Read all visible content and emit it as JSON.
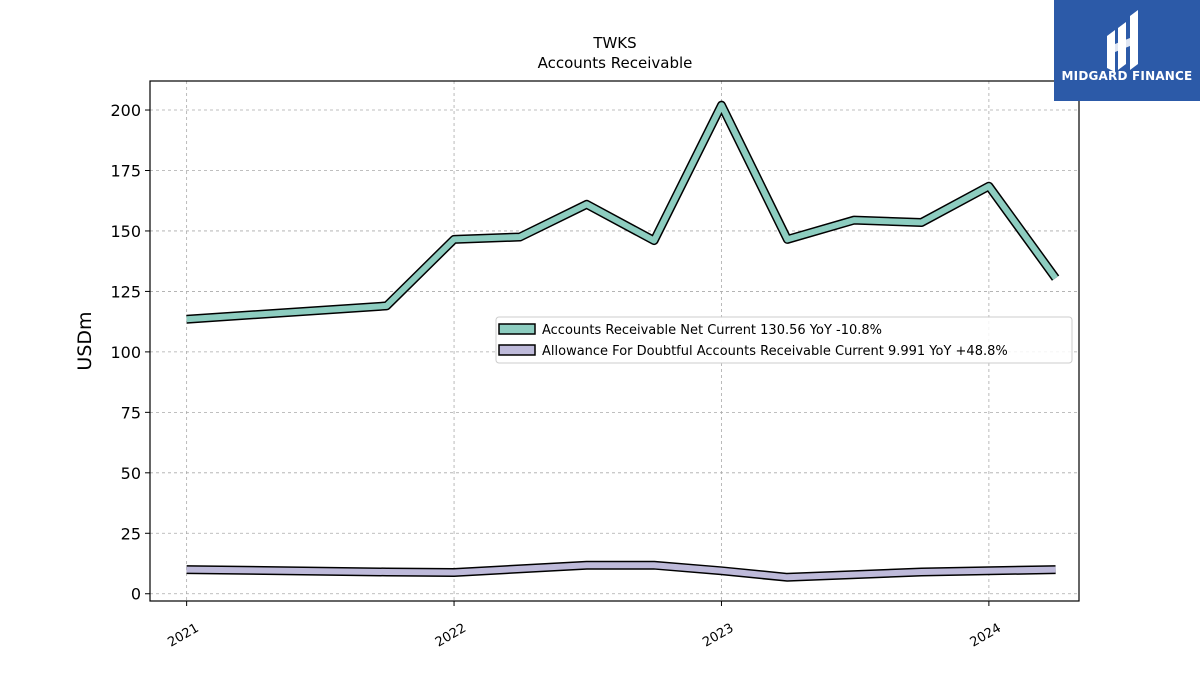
{
  "chart_data": {
    "type": "line",
    "title": "TWKS",
    "subtitle": "Accounts Receivable",
    "ylabel": "USDm",
    "xlabel": "",
    "ylim": [
      -3,
      212
    ],
    "xlim": [
      "2020-11-12",
      "2024-05-03"
    ],
    "yticks": [
      0,
      25,
      50,
      75,
      100,
      125,
      150,
      175,
      200
    ],
    "xticks": [
      {
        "date": "2021-01-01",
        "label": "2021"
      },
      {
        "date": "2022-01-01",
        "label": "2022"
      },
      {
        "date": "2023-01-01",
        "label": "2023"
      },
      {
        "date": "2024-01-01",
        "label": "2024"
      }
    ],
    "grid": true,
    "legend_position": "center-right",
    "series": [
      {
        "name": "Accounts Receivable Net Current",
        "legend_label": "Accounts Receivable Net Current  130.56 YoY -10.8%",
        "color": "#8dcdc0",
        "points": [
          {
            "x": "2021-01-01",
            "y": 113.5
          },
          {
            "x": "2021-10-01",
            "y": 119
          },
          {
            "x": "2022-01-01",
            "y": 146.5
          },
          {
            "x": "2022-04-01",
            "y": 147.5
          },
          {
            "x": "2022-07-01",
            "y": 161
          },
          {
            "x": "2022-10-01",
            "y": 146
          },
          {
            "x": "2023-01-01",
            "y": 202
          },
          {
            "x": "2023-04-01",
            "y": 146.5
          },
          {
            "x": "2023-07-01",
            "y": 154.5
          },
          {
            "x": "2023-10-01",
            "y": 153.5
          },
          {
            "x": "2024-01-01",
            "y": 168.5
          },
          {
            "x": "2024-04-01",
            "y": 130.5
          }
        ]
      },
      {
        "name": "Allowance For Doubtful Accounts Receivable Current",
        "legend_label": "Allowance For Doubtful Accounts Receivable Current  9.991 YoY +48.8%",
        "color": "#bebada",
        "points": [
          {
            "x": "2021-01-01",
            "y": 10
          },
          {
            "x": "2021-10-01",
            "y": 9
          },
          {
            "x": "2022-01-01",
            "y": 8.8
          },
          {
            "x": "2022-07-01",
            "y": 11.8
          },
          {
            "x": "2022-10-01",
            "y": 11.8
          },
          {
            "x": "2023-01-01",
            "y": 9.5
          },
          {
            "x": "2023-04-01",
            "y": 6.8
          },
          {
            "x": "2023-10-01",
            "y": 9
          },
          {
            "x": "2024-01-01",
            "y": 9.5
          },
          {
            "x": "2024-04-01",
            "y": 10
          }
        ]
      }
    ]
  },
  "logo": {
    "text": "MIDGARD FINANCE",
    "background": "#2c5aa8"
  }
}
